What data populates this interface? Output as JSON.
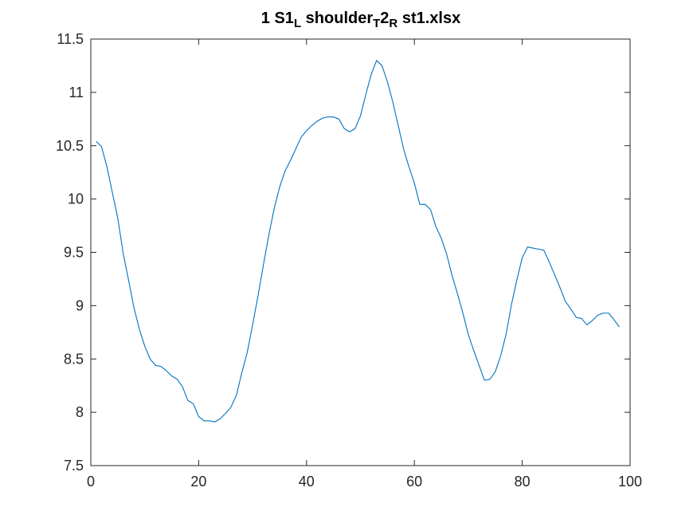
{
  "chart_data": {
    "type": "line",
    "title_parts": {
      "p1": "1 S1",
      "s1": "L",
      "p2": " shoulder",
      "s2": "T",
      "p3": "2",
      "s3": "R",
      "p4": " st1.xlsx"
    },
    "xlabel": "",
    "ylabel": "",
    "xlim": [
      0,
      100
    ],
    "ylim": [
      7.5,
      11.5
    ],
    "xticks": [
      0,
      20,
      40,
      60,
      80,
      100
    ],
    "xtick_labels": [
      "0",
      "20",
      "40",
      "60",
      "80",
      "100"
    ],
    "yticks": [
      7.5,
      8,
      8.5,
      9,
      9.5,
      10,
      10.5,
      11,
      11.5
    ],
    "ytick_labels": [
      "7.5",
      "8",
      "8.5",
      "9",
      "9.5",
      "10",
      "10.5",
      "11",
      "11.5"
    ],
    "grid": false,
    "line_color": "#0072BD",
    "series": [
      {
        "x": [
          1,
          2,
          3,
          4,
          5,
          6,
          7,
          8,
          9,
          10,
          11,
          12,
          13,
          14,
          15,
          16,
          17,
          18,
          19,
          20,
          21,
          22,
          23,
          24,
          25,
          26,
          27,
          28,
          29,
          30,
          31,
          32,
          33,
          34,
          35,
          36,
          37,
          38,
          39,
          40,
          41,
          42,
          43,
          44,
          45,
          46,
          47,
          48,
          49,
          50,
          51,
          52,
          53,
          54,
          55,
          56,
          57,
          58,
          59,
          60,
          61,
          62,
          63,
          64,
          65,
          66,
          67,
          68,
          69,
          70,
          71,
          72,
          73,
          74,
          75,
          76,
          77,
          78,
          79,
          80,
          81,
          82,
          83,
          84,
          85,
          86,
          87,
          88,
          89,
          90,
          91,
          92,
          93,
          94,
          95,
          96,
          97,
          98
        ],
        "values": [
          10.54,
          10.49,
          10.3,
          10.06,
          9.82,
          9.49,
          9.24,
          8.98,
          8.78,
          8.62,
          8.5,
          8.44,
          8.43,
          8.39,
          8.34,
          8.31,
          8.24,
          8.11,
          8.08,
          7.96,
          7.92,
          7.92,
          7.91,
          7.94,
          7.99,
          8.05,
          8.16,
          8.37,
          8.56,
          8.82,
          9.09,
          9.38,
          9.66,
          9.91,
          10.11,
          10.26,
          10.36,
          10.47,
          10.58,
          10.64,
          10.69,
          10.73,
          10.76,
          10.77,
          10.77,
          10.75,
          10.66,
          10.63,
          10.66,
          10.78,
          10.98,
          11.17,
          11.3,
          11.25,
          11.1,
          10.91,
          10.69,
          10.47,
          10.3,
          10.15,
          9.95,
          9.95,
          9.9,
          9.74,
          9.63,
          9.48,
          9.28,
          9.11,
          8.93,
          8.73,
          8.58,
          8.44,
          8.3,
          8.31,
          8.38,
          8.53,
          8.73,
          9.01,
          9.24,
          9.45,
          9.55,
          9.54,
          9.53,
          9.52,
          9.41,
          9.29,
          9.17,
          9.04,
          8.97,
          8.89,
          8.88,
          8.82,
          8.86,
          8.91,
          8.93,
          8.93,
          8.87,
          8.8
        ]
      }
    ]
  }
}
